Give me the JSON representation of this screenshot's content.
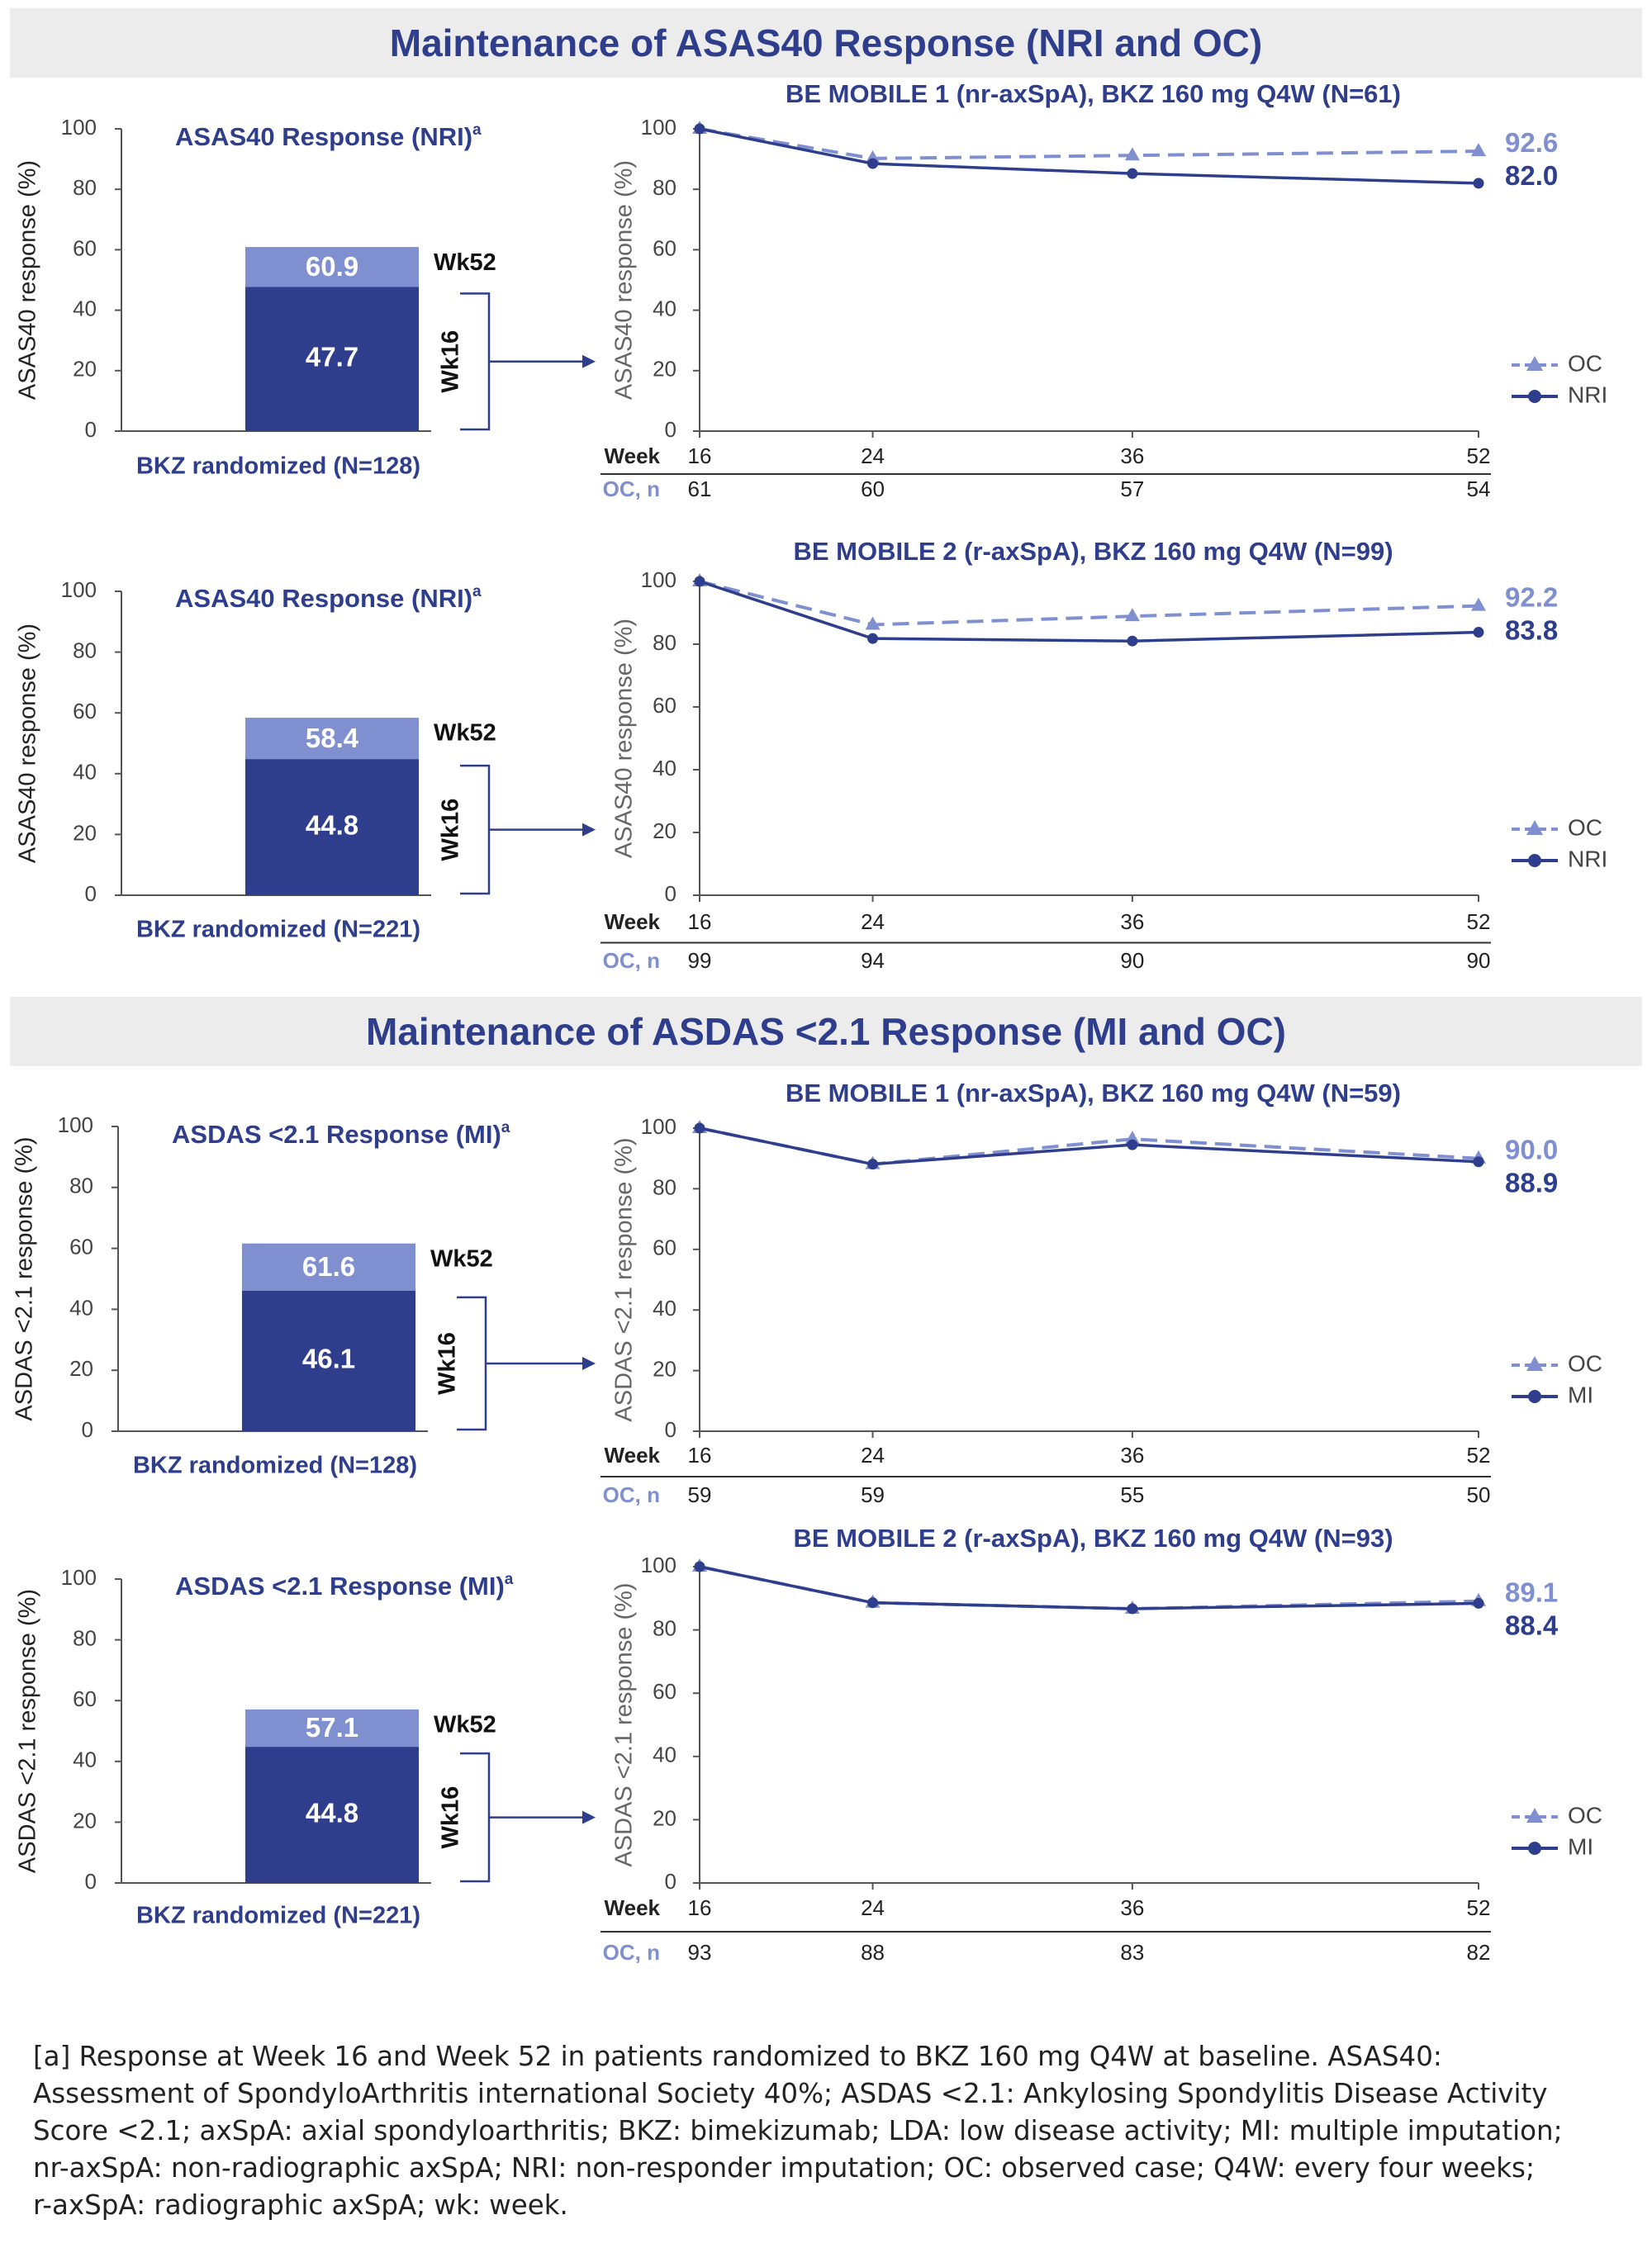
{
  "colors": {
    "dark": "#2e3e8c",
    "light": "#7f8fd0",
    "banner": "#ececec",
    "axis": "#555555"
  },
  "sections": [
    {
      "title": "Maintenance of ASAS40 Response (NRI and OC)"
    },
    {
      "title": "Maintenance of ASDAS <2.1 Response (MI and OC)"
    }
  ],
  "chart_data": [
    {
      "type": "bar",
      "stacked": true,
      "title": "ASAS40 Response (NRI)",
      "title_sup": "a",
      "ylabel": "ASAS40 response (%)",
      "ylim": [
        0,
        100
      ],
      "yticks": [
        0,
        20,
        40,
        60,
        80,
        100
      ],
      "xlabel": "BKZ randomized (N=128)",
      "segments": [
        {
          "name": "Wk16",
          "value": 47.7,
          "label": "47.7"
        },
        {
          "name": "Wk52",
          "value": 60.9,
          "label": "60.9"
        }
      ],
      "wk16_label": "Wk16",
      "wk52_label": "Wk52"
    },
    {
      "type": "line",
      "title": "BE MOBILE 1 (nr-axSpA), BKZ 160 mg Q4W (N=61)",
      "ylabel": "ASAS40 response (%)",
      "ylim": [
        0,
        100
      ],
      "yticks": [
        0,
        20,
        40,
        60,
        80,
        100
      ],
      "x": [
        16,
        24,
        36,
        52
      ],
      "xlim": [
        16,
        52
      ],
      "week_label": "Week",
      "oc_n_label": "OC, n",
      "oc_n": [
        "61",
        "60",
        "57",
        "54"
      ],
      "series": [
        {
          "name": "OC",
          "style": "dashed",
          "marker": "triangle",
          "values": [
            100,
            90.2,
            91.2,
            92.6
          ],
          "end_label": "92.6"
        },
        {
          "name": "NRI",
          "style": "solid",
          "marker": "circle",
          "values": [
            100,
            88.5,
            85.2,
            82.0
          ],
          "end_label": "82.0"
        }
      ]
    },
    {
      "type": "bar",
      "stacked": true,
      "title": "ASAS40 Response (NRI)",
      "title_sup": "a",
      "ylabel": "ASAS40 response (%)",
      "ylim": [
        0,
        100
      ],
      "yticks": [
        0,
        20,
        40,
        60,
        80,
        100
      ],
      "xlabel": "BKZ randomized (N=221)",
      "segments": [
        {
          "name": "Wk16",
          "value": 44.8,
          "label": "44.8"
        },
        {
          "name": "Wk52",
          "value": 58.4,
          "label": "58.4"
        }
      ],
      "wk16_label": "Wk16",
      "wk52_label": "Wk52"
    },
    {
      "type": "line",
      "title": "BE MOBILE 2 (r-axSpA), BKZ 160 mg Q4W (N=99)",
      "ylabel": "ASAS40 response (%)",
      "ylim": [
        0,
        100
      ],
      "yticks": [
        0,
        20,
        40,
        60,
        80,
        100
      ],
      "x": [
        16,
        24,
        36,
        52
      ],
      "xlim": [
        16,
        52
      ],
      "week_label": "Week",
      "oc_n_label": "OC, n",
      "oc_n": [
        "99",
        "94",
        "90",
        "90"
      ],
      "series": [
        {
          "name": "OC",
          "style": "dashed",
          "marker": "triangle",
          "values": [
            100,
            86.2,
            88.9,
            92.2
          ],
          "end_label": "92.2"
        },
        {
          "name": "NRI",
          "style": "solid",
          "marker": "circle",
          "values": [
            100,
            81.8,
            81.0,
            83.8
          ],
          "end_label": "83.8"
        }
      ]
    },
    {
      "type": "bar",
      "stacked": true,
      "title": "ASDAS <2.1 Response (MI)",
      "title_sup": "a",
      "ylabel": "ASDAS <2.1 response (%)",
      "ylim": [
        0,
        100
      ],
      "yticks": [
        0,
        20,
        40,
        60,
        80,
        100
      ],
      "xlabel": "BKZ randomized (N=128)",
      "segments": [
        {
          "name": "Wk16",
          "value": 46.1,
          "label": "46.1"
        },
        {
          "name": "Wk52",
          "value": 61.6,
          "label": "61.6"
        }
      ],
      "wk16_label": "Wk16",
      "wk52_label": "Wk52"
    },
    {
      "type": "line",
      "title": "BE MOBILE 1 (nr-axSpA), BKZ 160 mg Q4W (N=59)",
      "ylabel": "ASDAS <2.1 response (%)",
      "ylim": [
        0,
        100
      ],
      "yticks": [
        0,
        20,
        40,
        60,
        80,
        100
      ],
      "x": [
        16,
        24,
        36,
        52
      ],
      "xlim": [
        16,
        52
      ],
      "week_label": "Week",
      "oc_n_label": "OC, n",
      "oc_n": [
        "59",
        "59",
        "55",
        "50"
      ],
      "series": [
        {
          "name": "OC",
          "style": "dashed",
          "marker": "triangle",
          "values": [
            100,
            88.1,
            96.4,
            90.0
          ],
          "end_label": "90.0"
        },
        {
          "name": "MI",
          "style": "solid",
          "marker": "circle",
          "values": [
            100,
            88.1,
            94.5,
            88.9
          ],
          "end_label": "88.9"
        }
      ]
    },
    {
      "type": "bar",
      "stacked": true,
      "title": "ASDAS <2.1 Response (MI)",
      "title_sup": "a",
      "ylabel": "ASDAS <2.1 response (%)",
      "ylim": [
        0,
        100
      ],
      "yticks": [
        0,
        20,
        40,
        60,
        80,
        100
      ],
      "xlabel": "BKZ randomized (N=221)",
      "segments": [
        {
          "name": "Wk16",
          "value": 44.8,
          "label": "44.8"
        },
        {
          "name": "Wk52",
          "value": 57.1,
          "label": "57.1"
        }
      ],
      "wk16_label": "Wk16",
      "wk52_label": "Wk52"
    },
    {
      "type": "line",
      "title": "BE MOBILE 2 (r-axSpA), BKZ 160 mg Q4W (N=93)",
      "ylabel": "ASDAS <2.1 response (%)",
      "ylim": [
        0,
        100
      ],
      "yticks": [
        0,
        20,
        40,
        60,
        80,
        100
      ],
      "x": [
        16,
        24,
        36,
        52
      ],
      "xlim": [
        16,
        52
      ],
      "week_label": "Week",
      "oc_n_label": "OC, n",
      "oc_n": [
        "93",
        "88",
        "83",
        "82"
      ],
      "series": [
        {
          "name": "OC",
          "style": "dashed",
          "marker": "triangle",
          "values": [
            100,
            88.6,
            86.7,
            89.1
          ],
          "end_label": "89.1"
        },
        {
          "name": "MI",
          "style": "solid",
          "marker": "circle",
          "values": [
            100,
            88.6,
            86.7,
            88.4
          ],
          "end_label": "88.4"
        }
      ]
    }
  ],
  "footnote": [
    "[a] Response at Week 16 and Week 52 in patients randomized to BKZ 160 mg Q4W at baseline. ASAS40:",
    "Assessment of SpondyloArthritis international Society 40%; ASDAS <2.1: Ankylosing Spondylitis Disease Activity",
    "Score <2.1; axSpA: axial spondyloarthritis; BKZ: bimekizumab; LDA: low disease activity; MI: multiple imputation;",
    "nr-axSpA: non-radiographic axSpA; NRI: non-responder imputation; OC: observed case; Q4W: every four weeks;",
    "r-axSpA: radiographic axSpA; wk: week."
  ]
}
